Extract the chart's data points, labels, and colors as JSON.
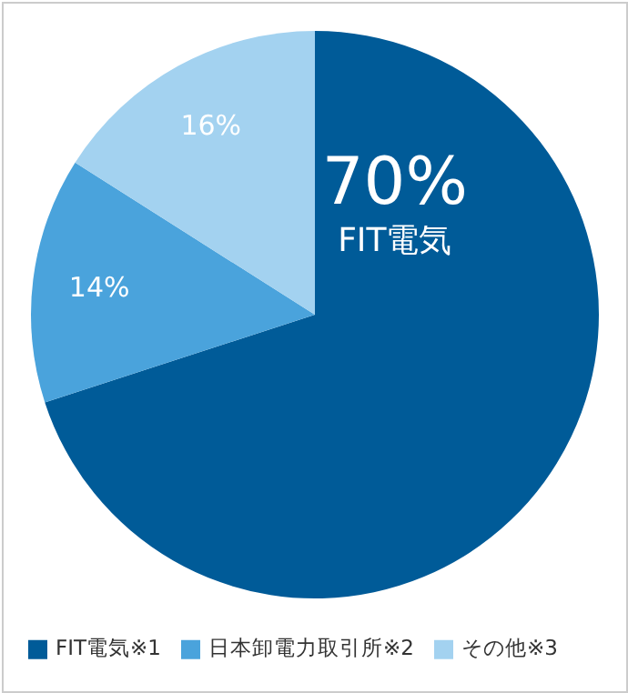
{
  "chart_data": {
    "type": "pie",
    "categories": [
      "FIT電気※1",
      "日本卸電力取引所※2",
      "その他※3"
    ],
    "values": [
      70,
      14,
      16
    ],
    "colors": [
      "#005b98",
      "#4aa3dc",
      "#a3d2f0"
    ],
    "value_labels": [
      "70%",
      "14%",
      "16%"
    ],
    "annotations": [
      "FIT電気"
    ],
    "legend": "bottom"
  }
}
